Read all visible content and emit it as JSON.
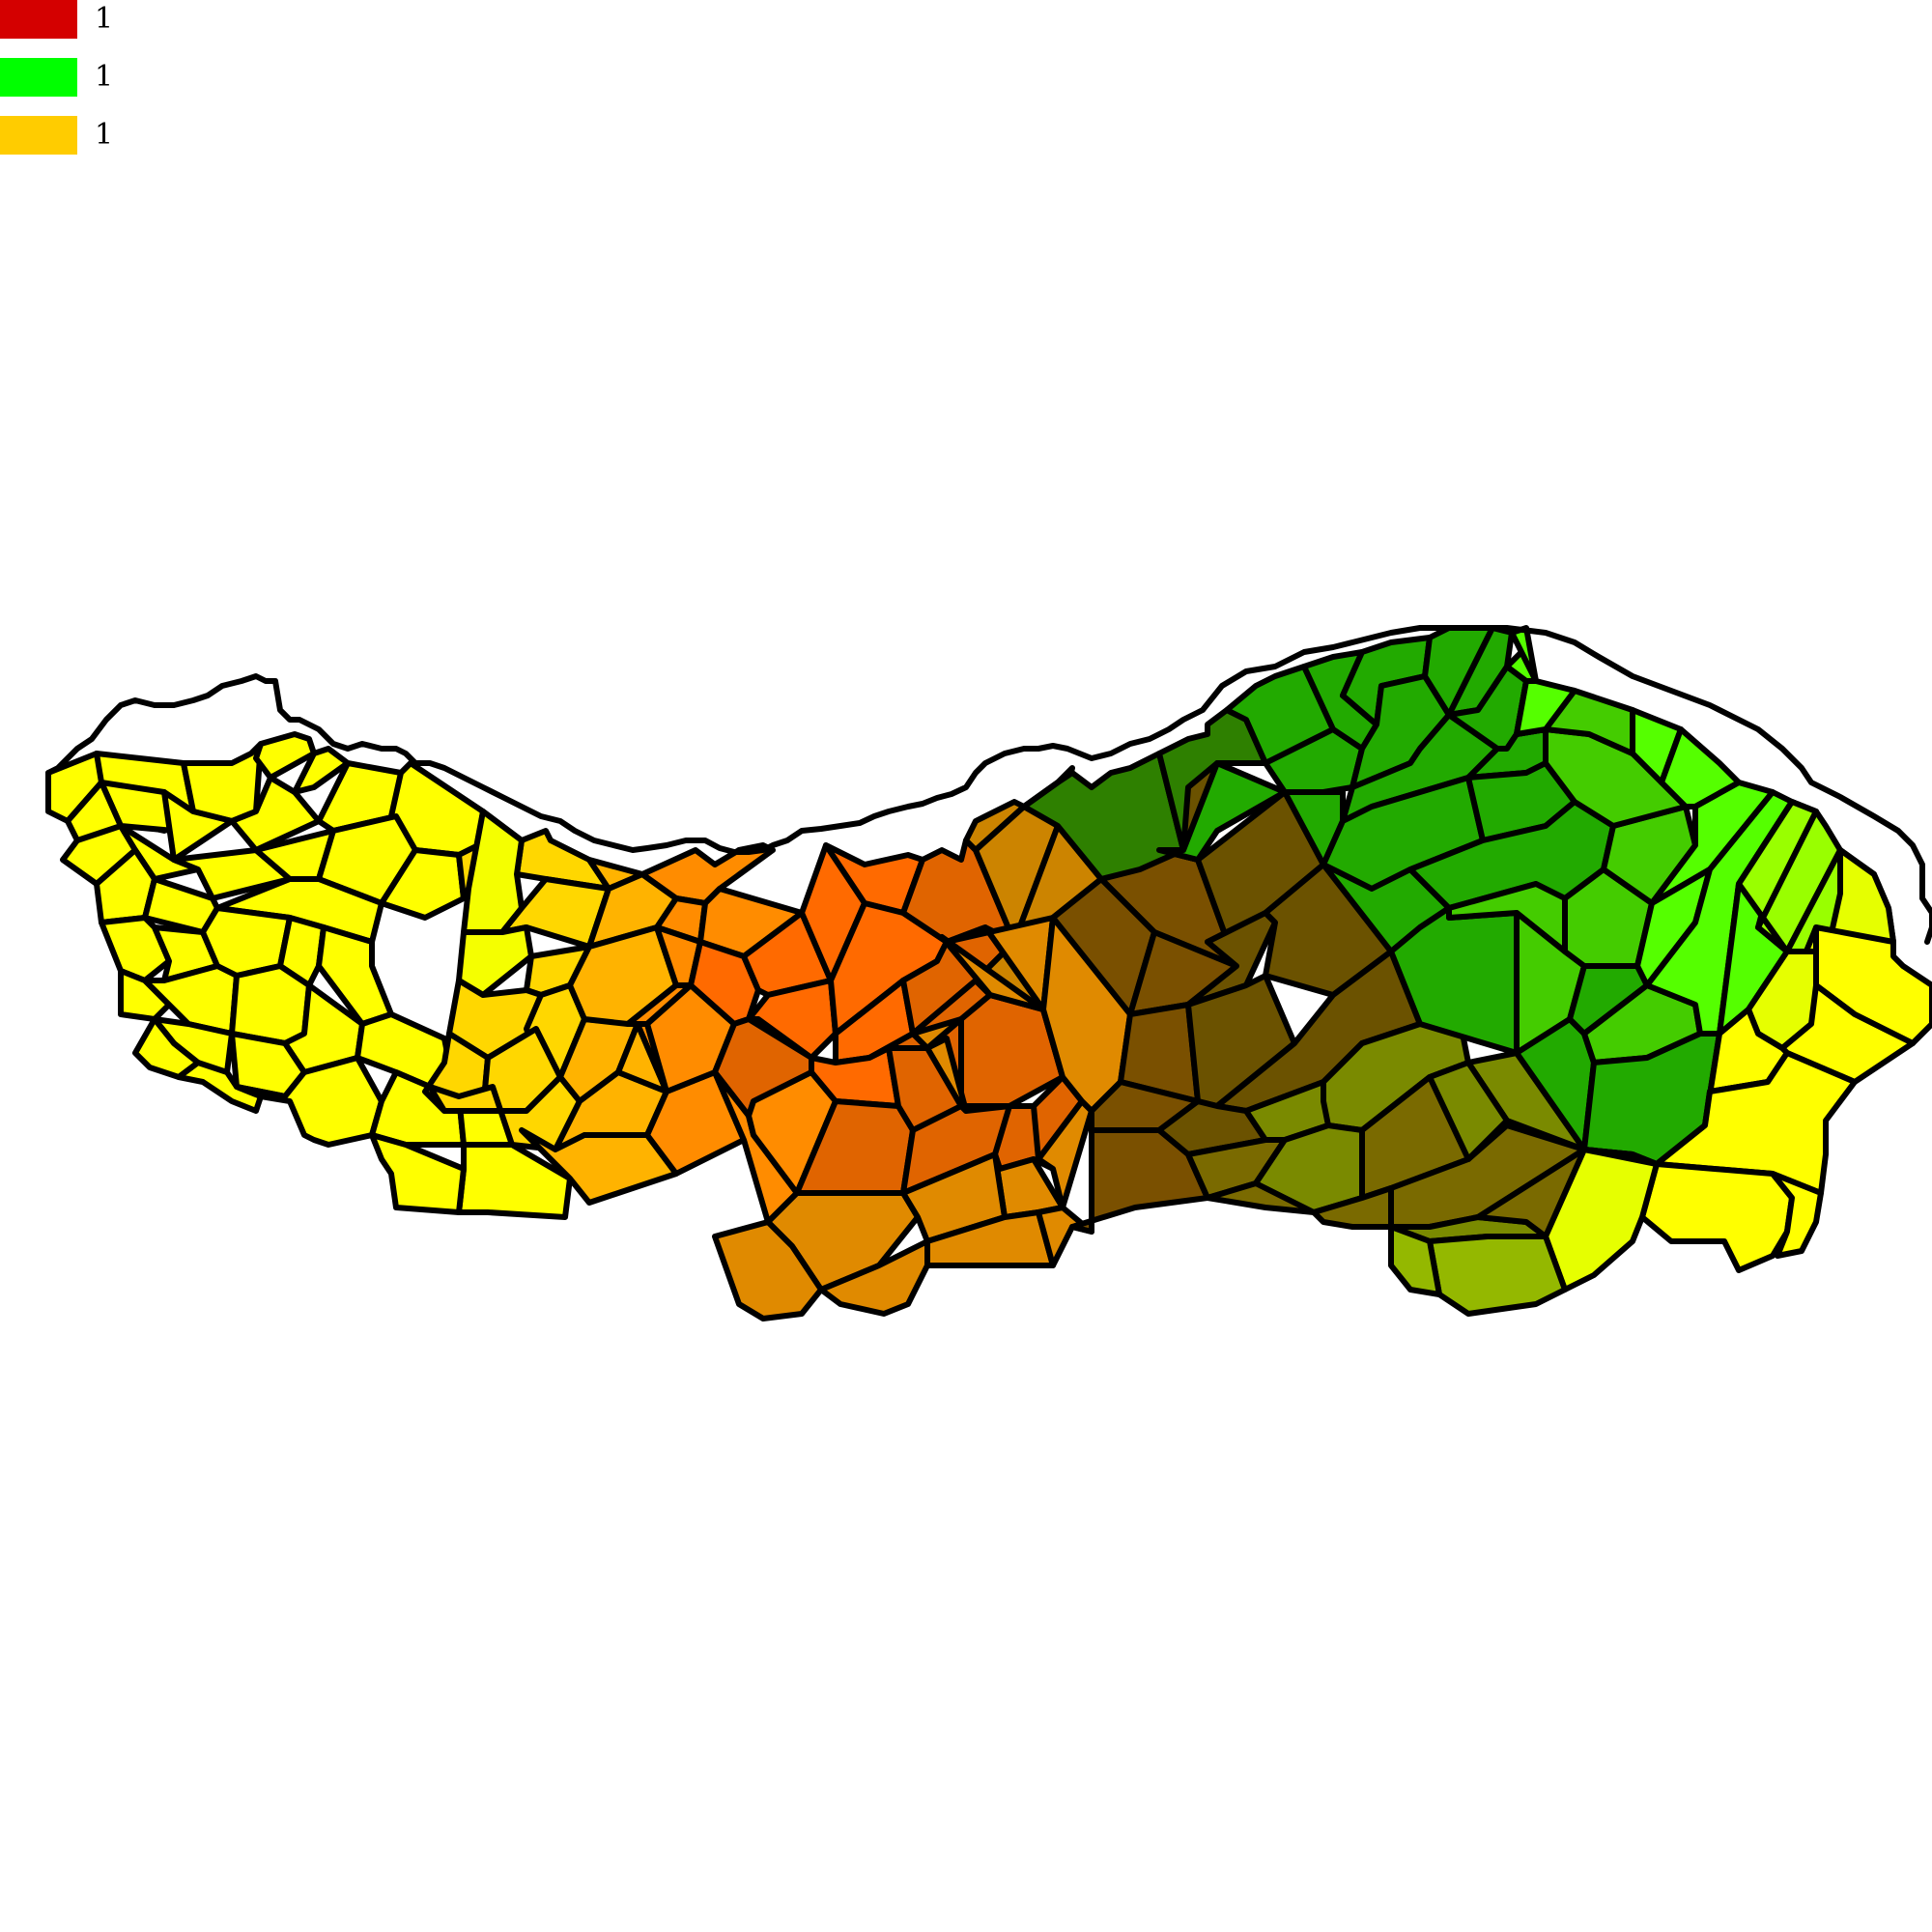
{
  "legend": {
    "items": [
      {
        "label": "1",
        "color": "#d40000"
      },
      {
        "label": "1",
        "color": "#00ff00"
      },
      {
        "label": "1",
        "color": "#ffcc00"
      }
    ]
  },
  "map": {
    "colors": {
      "yellow": "#ffff00",
      "yellow_light": "#f5ff00",
      "yellow_green": "#e6ff00",
      "gold": "#ffd700",
      "orange_yellow": "#ffb300",
      "orange": "#ff8c00",
      "orange_red": "#ff6a00",
      "dark_orange": "#e06400",
      "amber": "#e08a00",
      "ochre": "#cc8400",
      "brown": "#7a5000",
      "dark_olive": "#6b5200",
      "olive": "#7a6a00",
      "olive_green": "#7a8a00",
      "dark_green": "#2e8000",
      "green": "#22aa00",
      "bright_green": "#44cc00",
      "lime": "#55ff00",
      "light_lime": "#99ff00",
      "khaki_green": "#94b800"
    }
  }
}
